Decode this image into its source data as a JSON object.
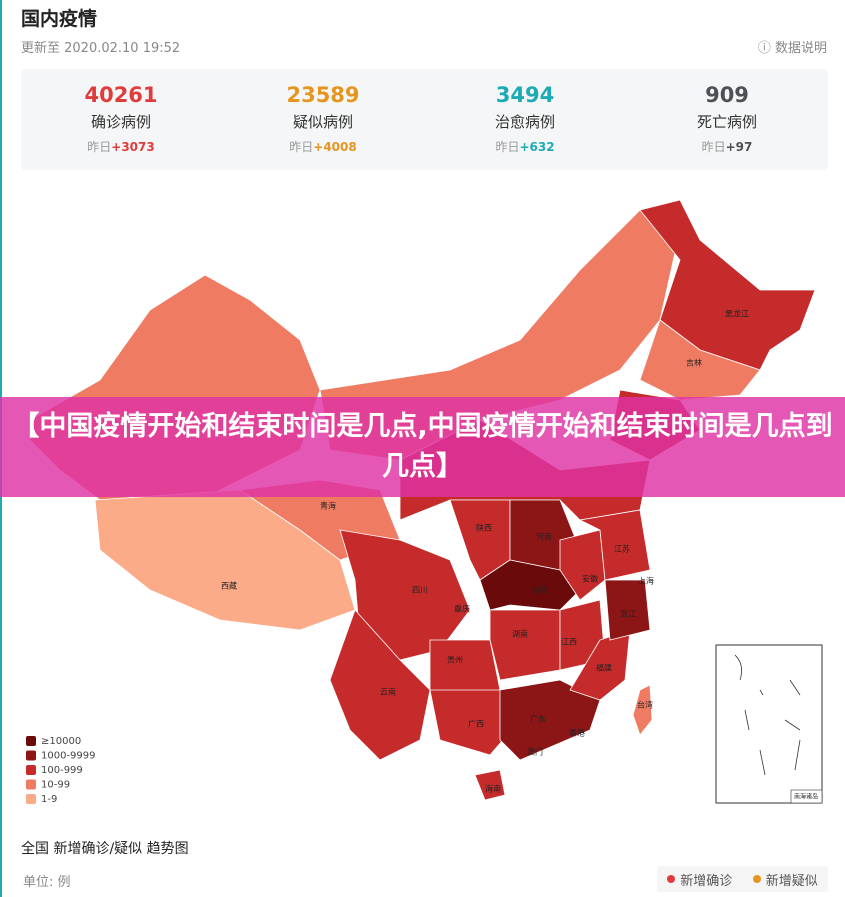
{
  "header": {
    "title": "国内疫情",
    "updated": "更新至 2020.02.10 19:52",
    "help": "数据说明"
  },
  "stats": [
    {
      "value": "40261",
      "label": "确诊病例",
      "prefix": "昨日",
      "delta": "+3073",
      "color": "#e03c3c"
    },
    {
      "value": "23589",
      "label": "疑似病例",
      "prefix": "昨日",
      "delta": "+4008",
      "color": "#e6951f"
    },
    {
      "value": "3494",
      "label": "治愈病例",
      "prefix": "昨日",
      "delta": "+632",
      "color": "#1cabb5"
    },
    {
      "value": "909",
      "label": "死亡病例",
      "prefix": "昨日",
      "delta": "+97",
      "color": "#4d5054"
    }
  ],
  "banner": {
    "text": "【中国疫情开始和结束时间是几点,中国疫情开始和结束时间是几点到几点】"
  },
  "map": {
    "provinces": [
      "黑龙江",
      "吉林",
      "青海",
      "西藏",
      "四川",
      "陕西",
      "河南",
      "江苏",
      "安徽",
      "上海",
      "湖北",
      "重庆",
      "浙江",
      "湖南",
      "江西",
      "贵州",
      "云南",
      "福建",
      "广西",
      "广东",
      "台湾",
      "香港",
      "澳门",
      "海南"
    ],
    "inset": "南海诸岛",
    "legend": [
      {
        "label": "≥10000",
        "color": "#6b0a0a"
      },
      {
        "label": "1000-9999",
        "color": "#8c1616"
      },
      {
        "label": "100-999",
        "color": "#c62b2b"
      },
      {
        "label": "10-99",
        "color": "#f07b63"
      },
      {
        "label": "1-9",
        "color": "#fbab87"
      }
    ]
  },
  "trend": {
    "title": "全国 新增确诊/疑似 趋势图",
    "unit": "单位: 例",
    "legend": [
      {
        "label": "新增确诊",
        "color": "#e03c3c"
      },
      {
        "label": "新增疑似",
        "color": "#e6951f"
      }
    ]
  }
}
